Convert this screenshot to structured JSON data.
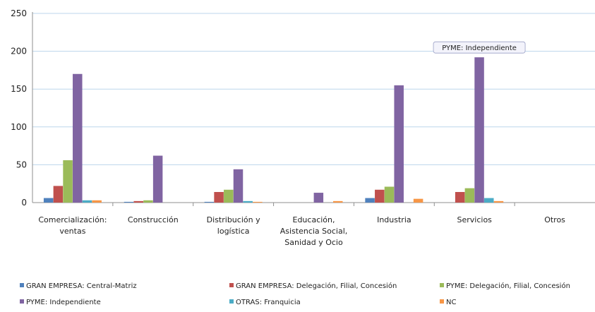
{
  "chart_data": {
    "type": "bar",
    "categories": [
      [
        "Comercialización:",
        "ventas"
      ],
      [
        "Construcción"
      ],
      [
        "Distribución y",
        "logística"
      ],
      [
        "Educación,",
        "Asistencia Social,",
        "Sanidad y Ocio"
      ],
      [
        "Industria"
      ],
      [
        "Servicios"
      ],
      [
        "Otros"
      ]
    ],
    "series": [
      {
        "name": "GRAN EMPRESA: Central-Matriz",
        "color": "#4f81bd",
        "values": [
          6,
          1,
          1,
          0,
          6,
          0,
          0
        ]
      },
      {
        "name": "GRAN EMPRESA: Delegación, Filial, Concesión",
        "color": "#c0504d",
        "values": [
          22,
          2,
          14,
          0,
          17,
          14,
          0
        ]
      },
      {
        "name": "PYME: Delegación, Filial, Concesión",
        "color": "#9bbb59",
        "values": [
          56,
          3,
          17,
          0,
          21,
          19,
          0
        ]
      },
      {
        "name": "PYME: Independiente",
        "color": "#8064a2",
        "values": [
          170,
          62,
          44,
          13,
          155,
          192,
          0
        ]
      },
      {
        "name": "OTRAS: Franquicia",
        "color": "#4bacc6",
        "values": [
          3,
          0,
          2,
          0,
          0,
          6,
          0
        ]
      },
      {
        "name": "NC",
        "color": "#f79646",
        "values": [
          3,
          0,
          1,
          2,
          5,
          2,
          0
        ]
      }
    ],
    "yticks": [
      0,
      50,
      100,
      150,
      200,
      250
    ],
    "ylim": [
      0,
      250
    ],
    "grid": true,
    "legend_position": "bottom",
    "tooltip": {
      "text": "PYME: Independiente",
      "category_index": 5,
      "series_index": 3
    }
  }
}
